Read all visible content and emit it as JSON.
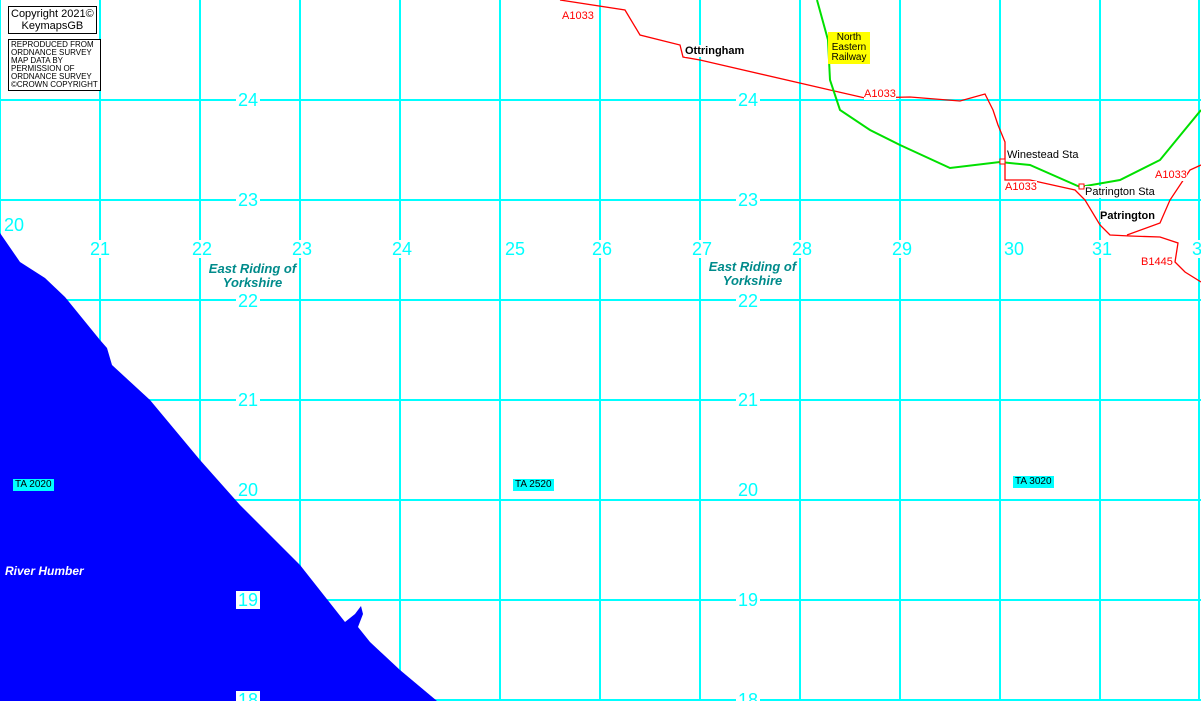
{
  "copyright": {
    "line1": "Copyright 2021©",
    "line2": "KeymapsGB"
  },
  "os_notice": [
    "REPRODUCED FROM",
    "ORDNANCE SURVEY",
    "MAP DATA BY",
    "PERMISSION OF",
    "ORDNANCE SURVEY",
    "©CROWN COPYRIGHT"
  ],
  "eastings": [
    "20",
    "21",
    "22",
    "23",
    "24",
    "25",
    "26",
    "27",
    "28",
    "29",
    "30",
    "31",
    "3"
  ],
  "northings": [
    "24",
    "23",
    "22",
    "21",
    "20",
    "19",
    "18"
  ],
  "regions": {
    "left": "East Riding of Yorkshire",
    "right": "East Riding of Yorkshire"
  },
  "places": {
    "ottringham": "Ottringham",
    "patrington": "Patrington"
  },
  "stations": {
    "winestead": "Winestead Sta",
    "patrington": "Patrington Sta"
  },
  "roads": {
    "a1033_a": "A1033",
    "a1033_b": "A1033",
    "a1033_c": "A1033",
    "a1033_d": "A1033",
    "b1445": "B1445"
  },
  "railway": "North Eastern Railway",
  "grid_refs": {
    "ta2020": "TA 2020",
    "ta2520": "TA 2520",
    "ta3020": "TA 3020"
  },
  "water": "River Humber",
  "colors": {
    "grid": "#00ffff",
    "water": "#0000ff",
    "road": "#ff0000",
    "railway": "#00e000",
    "label_bg": "#ffff00"
  }
}
